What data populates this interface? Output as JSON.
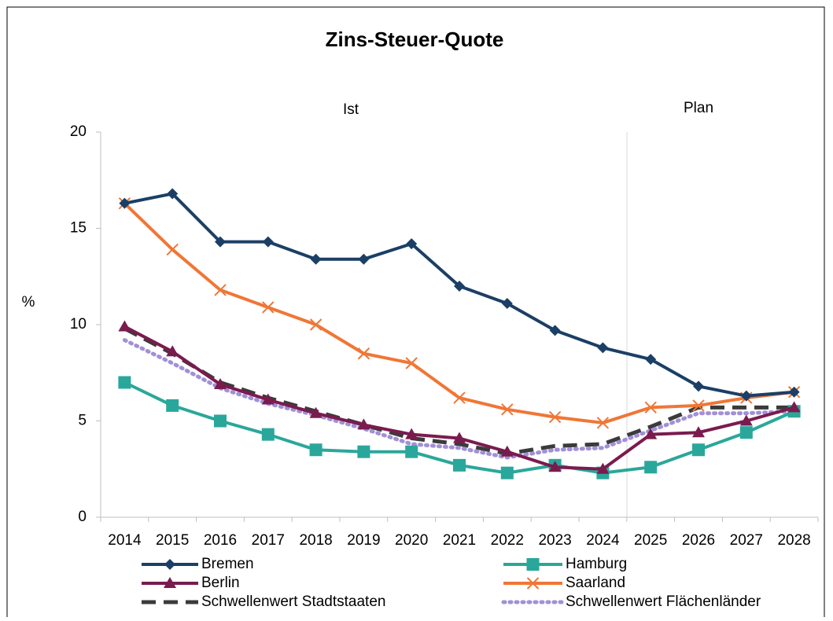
{
  "chart_data": {
    "type": "line",
    "title": "Zins-Steuer-Quote",
    "annotations": [
      "Ist",
      "Plan"
    ],
    "y_label": "%",
    "categories": [
      "2014",
      "2015",
      "2016",
      "2017",
      "2018",
      "2019",
      "2020",
      "2021",
      "2022",
      "2023",
      "2024",
      "2025",
      "2026",
      "2027",
      "2028"
    ],
    "ylim": [
      0,
      20
    ],
    "yticks": [
      0,
      5,
      10,
      15,
      20
    ],
    "series": [
      {
        "name": "Bremen",
        "color": "#1b3f66",
        "marker": "diamond",
        "values": [
          16.3,
          16.8,
          14.3,
          14.3,
          13.4,
          13.4,
          14.2,
          12.0,
          11.1,
          9.7,
          8.8,
          8.2,
          6.8,
          6.3,
          6.5
        ]
      },
      {
        "name": "Hamburg",
        "color": "#2aa79b",
        "marker": "square",
        "values": [
          7.0,
          5.8,
          5.0,
          4.3,
          3.5,
          3.4,
          3.4,
          2.7,
          2.3,
          2.7,
          2.3,
          2.6,
          3.5,
          4.4,
          5.5
        ]
      },
      {
        "name": "Berlin",
        "color": "#7a1b4e",
        "marker": "triangle",
        "values": [
          9.9,
          8.6,
          6.9,
          6.1,
          5.4,
          4.8,
          4.3,
          4.1,
          3.4,
          2.6,
          2.5,
          4.3,
          4.4,
          5.0,
          5.7
        ]
      },
      {
        "name": "Saarland",
        "color": "#f07636",
        "marker": "x",
        "values": [
          16.3,
          13.9,
          11.8,
          10.9,
          10.0,
          8.5,
          8.0,
          6.2,
          5.6,
          5.2,
          4.9,
          5.7,
          5.8,
          6.2,
          6.5
        ]
      },
      {
        "name": "Schwellenwert Stadtstaaten",
        "color": "#3b3b3b",
        "dash": "dashed",
        "values": [
          9.8,
          8.5,
          7.0,
          6.2,
          5.5,
          4.8,
          4.1,
          3.8,
          3.3,
          3.7,
          3.8,
          4.7,
          5.7,
          5.7,
          5.7
        ]
      },
      {
        "name": "Schwellenwert Flächenländer",
        "color": "#a190d8",
        "dash": "dotted",
        "values": [
          9.2,
          8.0,
          6.7,
          5.9,
          5.3,
          4.6,
          3.8,
          3.6,
          3.1,
          3.5,
          3.6,
          4.5,
          5.4,
          5.4,
          5.5
        ]
      }
    ]
  }
}
